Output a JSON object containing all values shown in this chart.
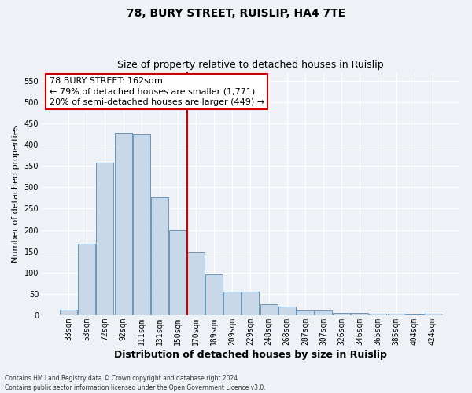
{
  "title": "78, BURY STREET, RUISLIP, HA4 7TE",
  "subtitle": "Size of property relative to detached houses in Ruislip",
  "xlabel": "Distribution of detached houses by size in Ruislip",
  "ylabel": "Number of detached properties",
  "footnote1": "Contains HM Land Registry data © Crown copyright and database right 2024.",
  "footnote2": "Contains public sector information licensed under the Open Government Licence v3.0.",
  "bar_labels": [
    "33sqm",
    "53sqm",
    "72sqm",
    "92sqm",
    "111sqm",
    "131sqm",
    "150sqm",
    "170sqm",
    "189sqm",
    "209sqm",
    "229sqm",
    "248sqm",
    "268sqm",
    "287sqm",
    "307sqm",
    "326sqm",
    "346sqm",
    "365sqm",
    "385sqm",
    "404sqm",
    "424sqm"
  ],
  "bar_values": [
    13,
    168,
    357,
    428,
    425,
    276,
    200,
    148,
    96,
    55,
    55,
    26,
    20,
    11,
    11,
    6,
    5,
    4,
    4,
    1,
    4
  ],
  "bar_color": "#c8d8e8",
  "bar_edge_color": "#5a8ab0",
  "vline_color": "#cc0000",
  "vline_pos": 6.5,
  "annotation_line1": "78 BURY STREET: 162sqm",
  "annotation_line2": "← 79% of detached houses are smaller (1,771)",
  "annotation_line3": "20% of semi-detached houses are larger (449) →",
  "annotation_box_color": "#ffffff",
  "annotation_box_edge": "#cc0000",
  "yticks": [
    0,
    50,
    100,
    150,
    200,
    250,
    300,
    350,
    400,
    450,
    500,
    550
  ],
  "ylim": [
    0,
    570
  ],
  "bg_color": "#eef2f7",
  "grid_color": "#ffffff",
  "title_fontsize": 10,
  "subtitle_fontsize": 9,
  "ylabel_fontsize": 8,
  "xlabel_fontsize": 9,
  "tick_fontsize": 7,
  "annot_fontsize": 8,
  "footnote_fontsize": 5.5
}
